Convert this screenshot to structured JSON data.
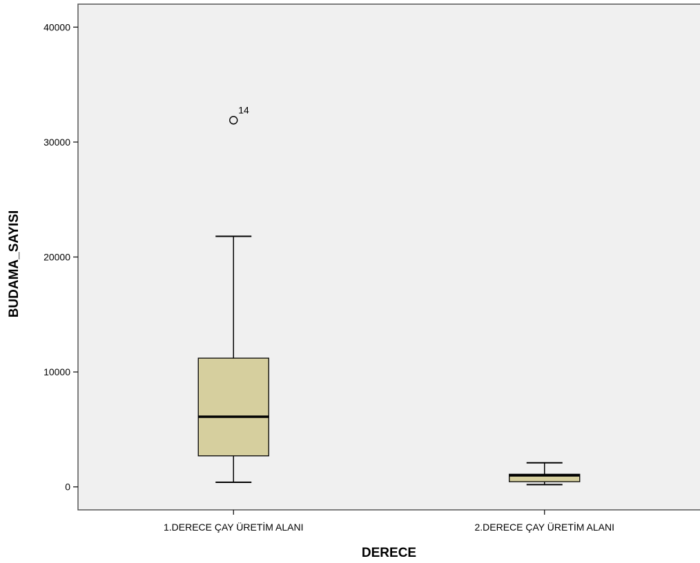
{
  "chart_data": {
    "type": "boxplot",
    "xlabel": "DERECE",
    "ylabel": "BUDAMA_SAYISI",
    "ylim": [
      -2000,
      42000
    ],
    "yticks": [
      0,
      10000,
      20000,
      30000,
      40000
    ],
    "grid": false,
    "colors": {
      "plot_bg": "#f0f0f0",
      "box_fill": "#d6cf9e",
      "stroke": "#000000",
      "frame": "#555555"
    },
    "categories": [
      "1.DERECE ÇAY ÜRETİM ALANI",
      "2.DERECE ÇAY ÜRETİM ALANI"
    ],
    "boxes": [
      {
        "category": "1.DERECE ÇAY ÜRETİM ALANI",
        "whisker_low": 400,
        "q1": 2700,
        "median": 6100,
        "q3": 11200,
        "whisker_high": 21800,
        "outliers": [
          {
            "value": 31900,
            "label": "14"
          }
        ]
      },
      {
        "category": "2.DERECE ÇAY ÜRETİM ALANI",
        "whisker_low": 200,
        "q1": 450,
        "median": 1000,
        "q3": 1100,
        "whisker_high": 2100,
        "outliers": []
      }
    ]
  }
}
